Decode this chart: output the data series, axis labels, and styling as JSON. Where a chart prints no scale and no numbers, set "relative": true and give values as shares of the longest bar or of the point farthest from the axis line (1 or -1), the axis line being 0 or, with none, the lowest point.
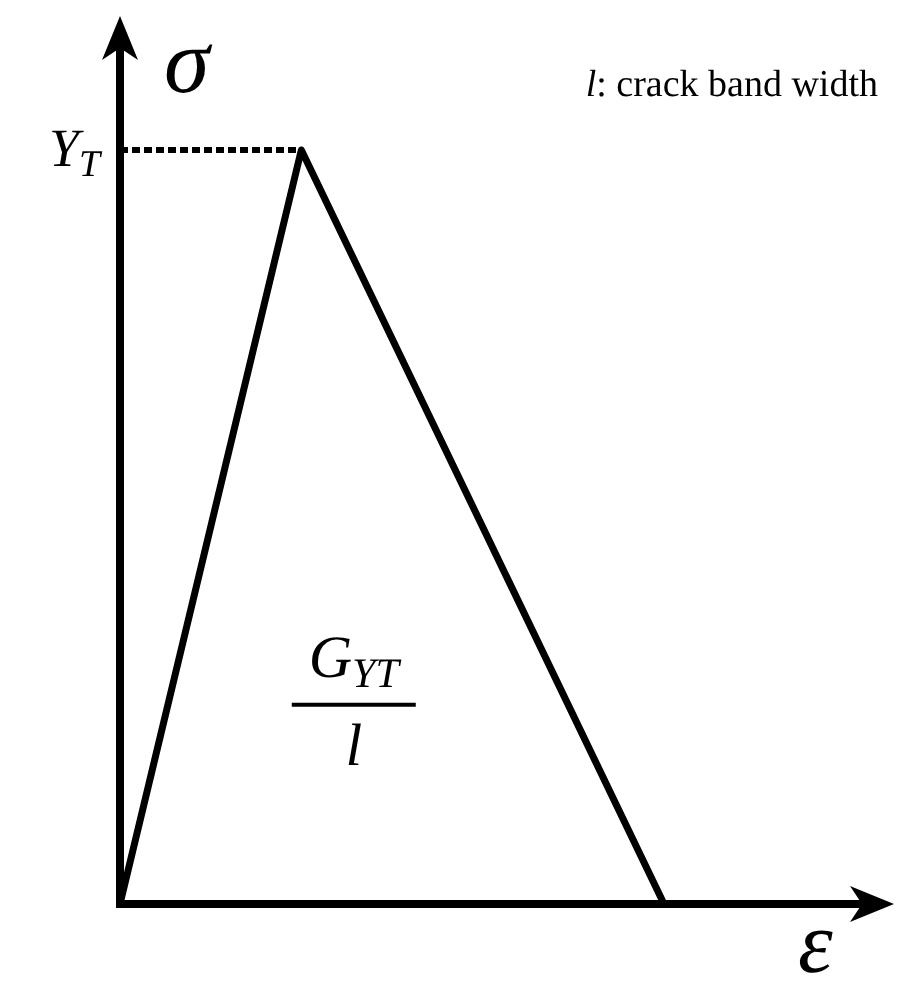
{
  "chart_data": {
    "type": "line",
    "relative": true,
    "xlabel": "ε",
    "ylabel": "σ",
    "categories": [
      null,
      null,
      null,
      null
    ],
    "series": [
      {
        "color": "#000000",
        "values": [
          0,
          1,
          0.5,
          0
        ]
      }
    ],
    "ref_lines": [
      {
        "axis": "y",
        "value": 1,
        "label": "Y$_{T}$",
        "line_style": "dotted",
        "color": "#000000"
      }
    ],
    "annotations": [
      "l: crack band width",
      "G$_{YT}$\nl"
    ]
  }
}
